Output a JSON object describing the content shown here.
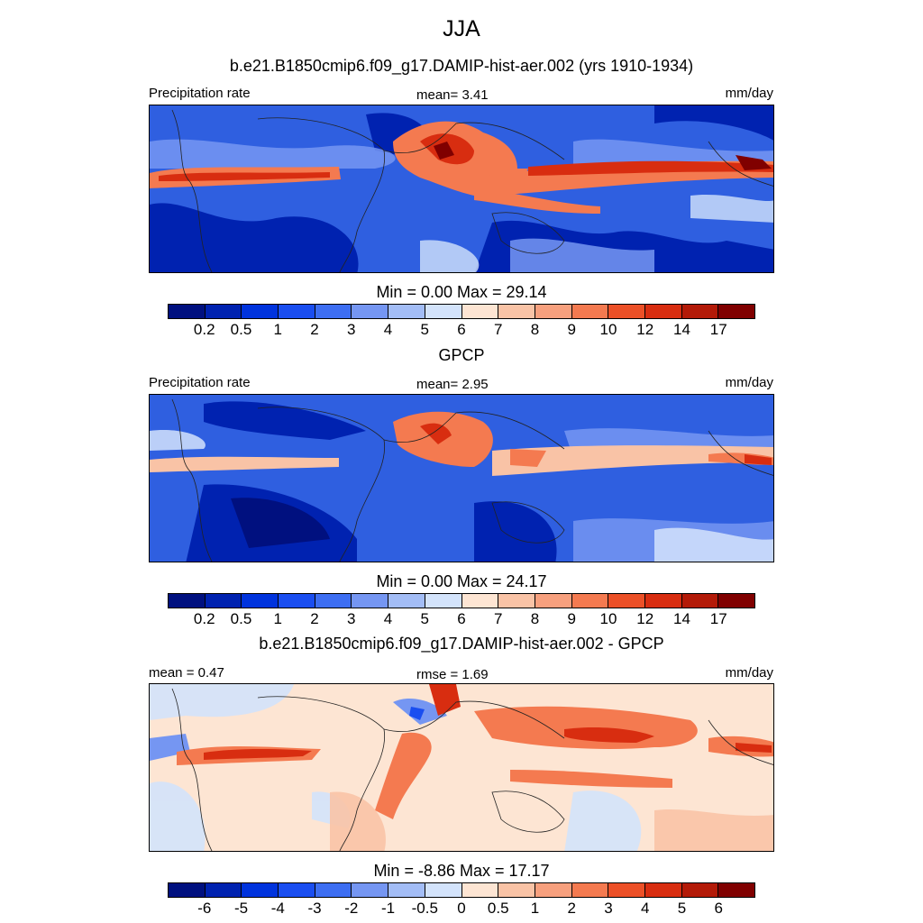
{
  "title": "JJA",
  "panels": [
    {
      "id": "model",
      "title": "b.e21.B1850cmip6.f09_g17.DAMIP-hist-aer.002 (yrs 1910-1934)",
      "left_label": "Precipitation rate",
      "center_label": "mean=   3.41",
      "right_label": "mm/day",
      "minmax": "Min =   0.00 Max =  29.14",
      "tick_labels": [
        "0.2",
        "0.5",
        "1",
        "2",
        "3",
        "4",
        "5",
        "6",
        "7",
        "8",
        "9",
        "10",
        "12",
        "14",
        "17"
      ],
      "colors": [
        "#00107f",
        "#0022b0",
        "#0033dd",
        "#1a4ef0",
        "#3d6ef2",
        "#7596f2",
        "#a3bdf6",
        "#d3e3fb",
        "#fde5d3",
        "#f9c3a6",
        "#f7a07e",
        "#f47a50",
        "#ec5027",
        "#d82d10",
        "#b31a08",
        "#800000"
      ]
    },
    {
      "id": "obs",
      "title": "GPCP",
      "left_label": "Precipitation rate",
      "center_label": "mean=   2.95",
      "right_label": "mm/day",
      "minmax": "Min =   0.00 Max =  24.17",
      "tick_labels": [
        "0.2",
        "0.5",
        "1",
        "2",
        "3",
        "4",
        "5",
        "6",
        "7",
        "8",
        "9",
        "10",
        "12",
        "14",
        "17"
      ],
      "colors": [
        "#00107f",
        "#0022b0",
        "#0033dd",
        "#1a4ef0",
        "#3d6ef2",
        "#7596f2",
        "#a3bdf6",
        "#d3e3fb",
        "#fde5d3",
        "#f9c3a6",
        "#f7a07e",
        "#f47a50",
        "#ec5027",
        "#d82d10",
        "#b31a08",
        "#800000"
      ]
    },
    {
      "id": "diff",
      "title": "b.e21.B1850cmip6.f09_g17.DAMIP-hist-aer.002 - GPCP",
      "left_label": "mean =   0.47",
      "center_label": "rmse =   1.69",
      "right_label": "mm/day",
      "minmax": "Min =  -8.86 Max =  17.17",
      "tick_labels": [
        "-6",
        "-5",
        "-4",
        "-3",
        "-2",
        "-1",
        "-0.5",
        "0",
        "0.5",
        "1",
        "2",
        "3",
        "4",
        "5",
        "6"
      ],
      "colors": [
        "#00107f",
        "#0022b0",
        "#0033dd",
        "#1a4ef0",
        "#3d6ef2",
        "#7596f2",
        "#a3bdf6",
        "#d3e3fb",
        "#fde5d3",
        "#f9c3a6",
        "#f7a07e",
        "#f47a50",
        "#ec5027",
        "#d82d10",
        "#b31a08",
        "#800000"
      ]
    }
  ]
}
